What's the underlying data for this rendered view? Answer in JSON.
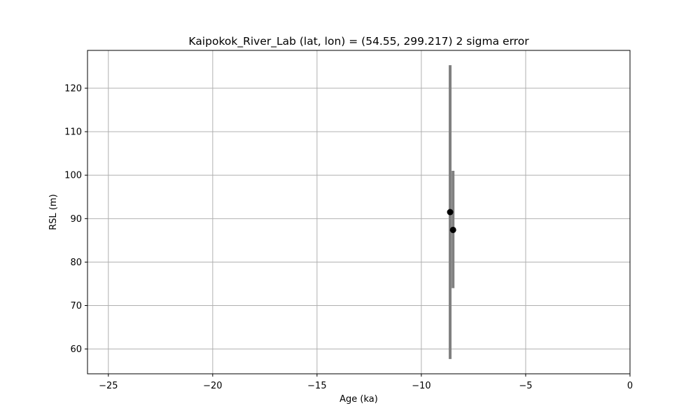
{
  "chart_data": {
    "type": "scatter",
    "title": "Kaipokok_River_Lab (lat, lon) = (54.55, 299.217)  2 sigma error",
    "xlabel": "Age (ka)",
    "ylabel": "RSL (m)",
    "xlim": [
      -26,
      0
    ],
    "ylim": [
      54.3,
      128.7
    ],
    "xticks": [
      -25,
      -20,
      -15,
      -10,
      -5,
      0
    ],
    "xtick_labels": [
      "−25",
      "−20",
      "−15",
      "−10",
      "−5",
      "0"
    ],
    "yticks": [
      60,
      70,
      80,
      90,
      100,
      110,
      120
    ],
    "ytick_labels": [
      "60",
      "70",
      "80",
      "90",
      "100",
      "110",
      "120"
    ],
    "grid": true,
    "legend": "none",
    "point_color": "#000000",
    "errorbar_color": "#808080",
    "grid_color": "#b0b0b0",
    "points": [
      {
        "x": -8.62,
        "y": 91.5,
        "y_low": 57.7,
        "y_high": 125.3
      },
      {
        "x": -8.48,
        "y": 87.4,
        "y_low": 74.0,
        "y_high": 101.0
      }
    ]
  }
}
